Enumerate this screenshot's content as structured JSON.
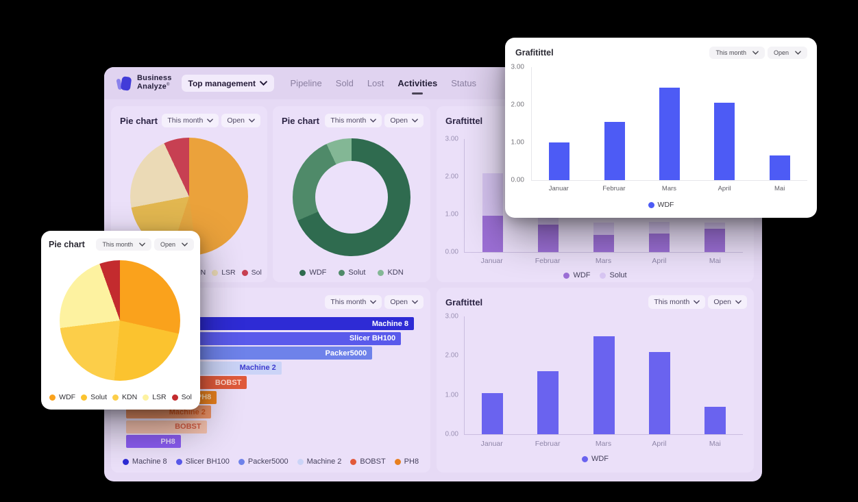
{
  "header": {
    "logo": {
      "line1": "Business",
      "line2": "Analyze",
      "mark": "®"
    },
    "team_selector": {
      "label": "Top management"
    },
    "nav": [
      {
        "label": "Pipeline"
      },
      {
        "label": "Sold"
      },
      {
        "label": "Lost"
      },
      {
        "label": "Activities"
      },
      {
        "label": "Status"
      }
    ],
    "active_nav": "Activities"
  },
  "cards": {
    "pie_top_left": {
      "title": "Pie chart",
      "period": "This month",
      "status": "Open"
    },
    "pie_donut": {
      "title": "Pie chart",
      "period": "This month",
      "status": "Open"
    },
    "graf_stacked": {
      "title": "Graftittel",
      "period": "This month",
      "status": "Open"
    },
    "machine_bars": {
      "title": "",
      "period": "This month",
      "status": "Open"
    },
    "graf_bar": {
      "title": "Graftittel",
      "period": "This month",
      "status": "Open"
    }
  },
  "floating": {
    "grafitittel": {
      "title": "Grafitittel",
      "period": "This month",
      "status": "Open"
    },
    "pie": {
      "title": "Pie chart",
      "period": "This month",
      "status": "Open"
    }
  },
  "chart_data": [
    {
      "id": "pie-top-left",
      "type": "pie",
      "title": "Pie chart",
      "slices": [
        {
          "label": "WDF",
          "value": 48,
          "color": "#EBA23B"
        },
        {
          "label": "Solut",
          "value": 7,
          "color": "#E3A640"
        },
        {
          "label": "KDN",
          "value": 17,
          "color": "#E2B750"
        },
        {
          "label": "LSR",
          "value": 21,
          "color": "#EBDAB6"
        },
        {
          "label": "Sol",
          "value": 7,
          "color": "#C74052"
        }
      ]
    },
    {
      "id": "pie-donut",
      "type": "donut",
      "title": "Pie chart",
      "hole_color": "#ECE1FA",
      "slices": [
        {
          "label": "WDF",
          "value": 68.5,
          "color": "#2F6B4F"
        },
        {
          "label": "Solut",
          "value": 24.5,
          "color": "#4F8A69"
        },
        {
          "label": "KDN",
          "value": 7,
          "color": "#83B795"
        }
      ]
    },
    {
      "id": "stacked-purple",
      "type": "stacked-bar",
      "title": "Graftittel",
      "categories": [
        "Januar",
        "Februar",
        "Mars",
        "April",
        "Mai"
      ],
      "series": [
        {
          "name": "WDF",
          "color": "#9C6FD6",
          "values": [
            0.97,
            0.72,
            0.45,
            0.5,
            0.62
          ]
        },
        {
          "name": "Solut",
          "color": "#D8C6F3",
          "values": [
            1.13,
            0.48,
            0.33,
            0.3,
            0.16
          ]
        }
      ],
      "ylim": [
        0,
        3
      ],
      "yticks": [
        "3.00",
        "2.00",
        "1.00",
        "0.00"
      ]
    },
    {
      "id": "machine-hbar",
      "type": "hbar",
      "max": 10,
      "bars": [
        {
          "label": "Machine 8",
          "value": 10,
          "color": "#2E2BD5",
          "text": "#FFFFFF"
        },
        {
          "label": "Slicer BH100",
          "value": 9.55,
          "color": "#5A5AEB",
          "text": "#FFFFFF"
        },
        {
          "label": "Packer5000",
          "value": 8.55,
          "color": "#6E82EA",
          "text": "#FFFFFF"
        },
        {
          "label": "Machine 2",
          "value": 5.4,
          "color": "#CBD4F7",
          "text": "#3D3BCF"
        },
        {
          "label": "BOBST",
          "value": 4.2,
          "color": "#E05A3B",
          "text": "#FFD9CE"
        },
        {
          "label": "PH8",
          "value": 3.15,
          "color": "#E8811F",
          "text": "#FCD9B0"
        },
        {
          "label": "Machine 2",
          "value": 2.95,
          "color": "#E89166",
          "text": "#D2571F"
        },
        {
          "label": "BOBST",
          "value": 2.8,
          "color": "#F2BFAC",
          "text": "#D35B42"
        },
        {
          "label": "PH8",
          "value": 1.9,
          "color": "#8A5CF0",
          "text": "#E6DAFD"
        }
      ],
      "legend": [
        {
          "label": "Machine 8",
          "color": "#2E2BD5"
        },
        {
          "label": "Slicer BH100",
          "color": "#5A5AEB"
        },
        {
          "label": "Packer5000",
          "color": "#6E82EA"
        },
        {
          "label": "Machine 2",
          "color": "#CBD4F7"
        },
        {
          "label": "BOBST",
          "color": "#E2593A"
        },
        {
          "label": "PH8",
          "color": "#E8801F"
        }
      ]
    },
    {
      "id": "graf-bar",
      "type": "bar",
      "title": "Graftittel",
      "categories": [
        "Januar",
        "Februar",
        "Mars",
        "April",
        "Mai"
      ],
      "values": [
        1.05,
        1.6,
        2.5,
        2.1,
        0.7
      ],
      "color": "#6A63EF",
      "ylim": [
        0,
        3
      ],
      "yticks": [
        "3.00",
        "2.00",
        "1.00",
        "0.00"
      ],
      "legend": [
        {
          "label": "WDF",
          "color": "#6A63EF"
        }
      ]
    },
    {
      "id": "float-bar",
      "type": "bar",
      "title": "Grafitittel",
      "categories": [
        "Januar",
        "Februar",
        "Mars",
        "April",
        "Mai"
      ],
      "values": [
        1.0,
        1.55,
        2.45,
        2.05,
        0.65
      ],
      "color": "#4D5BF5",
      "ylim": [
        0,
        3
      ],
      "yticks": [
        "3.00",
        "2.00",
        "1.00",
        "0.00"
      ],
      "legend": [
        {
          "label": "WDF",
          "color": "#4D5BF5"
        }
      ]
    }
  ]
}
